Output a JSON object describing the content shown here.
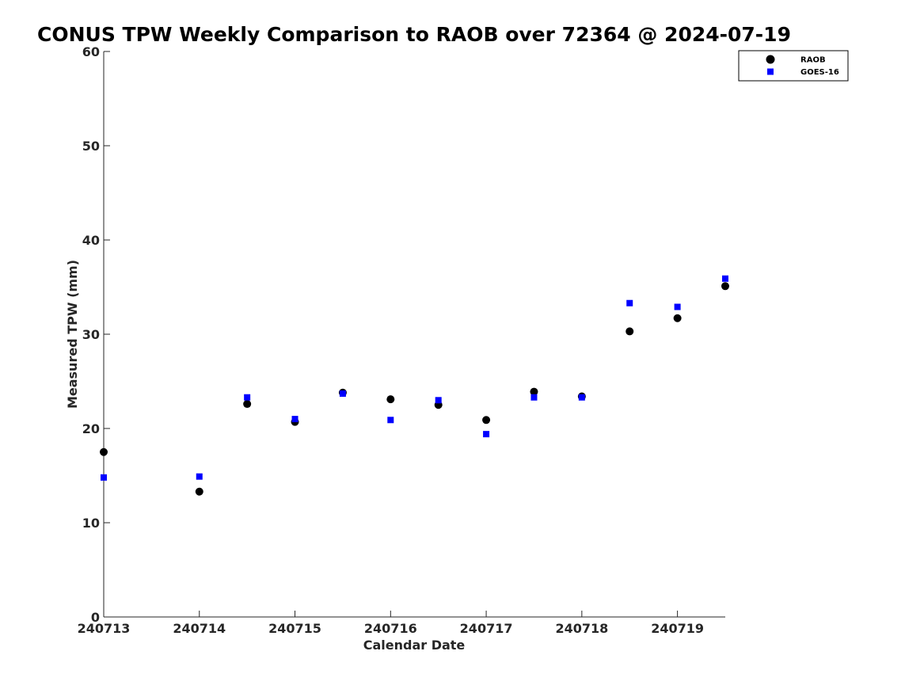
{
  "chart_data": {
    "type": "scatter",
    "title": "CONUS TPW Weekly Comparison to RAOB over 72364 @ 2024-07-19",
    "xlabel": "Calendar Date",
    "ylabel": "Measured TPW (mm)",
    "x_ticks": [
      {
        "value": 0,
        "label": "240713"
      },
      {
        "value": 1,
        "label": "240714"
      },
      {
        "value": 2,
        "label": "240715"
      },
      {
        "value": 3,
        "label": "240716"
      },
      {
        "value": 4,
        "label": "240717"
      },
      {
        "value": 5,
        "label": "240718"
      },
      {
        "value": 6,
        "label": "240719"
      }
    ],
    "y_ticks": [
      0,
      10,
      20,
      30,
      40,
      50,
      60
    ],
    "xlim": [
      0,
      6.5
    ],
    "ylim": [
      0,
      60
    ],
    "grid": false,
    "legend_position": "top-right",
    "series": [
      {
        "name": "RAOB",
        "marker": "circle",
        "color": "#000000",
        "points": [
          {
            "x": 0,
            "y": 17.5
          },
          {
            "x": 1,
            "y": 13.3
          },
          {
            "x": 1.5,
            "y": 22.6
          },
          {
            "x": 2,
            "y": 20.7
          },
          {
            "x": 2.5,
            "y": 23.8
          },
          {
            "x": 3,
            "y": 23.1
          },
          {
            "x": 3.5,
            "y": 22.5
          },
          {
            "x": 4,
            "y": 20.9
          },
          {
            "x": 4.5,
            "y": 23.9
          },
          {
            "x": 5,
            "y": 23.4
          },
          {
            "x": 5.5,
            "y": 30.3
          },
          {
            "x": 6,
            "y": 31.7
          },
          {
            "x": 6.5,
            "y": 35.1
          }
        ]
      },
      {
        "name": "GOES-16",
        "marker": "square",
        "color": "#0000ff",
        "points": [
          {
            "x": 0,
            "y": 14.8
          },
          {
            "x": 1,
            "y": 14.9
          },
          {
            "x": 1.5,
            "y": 23.3
          },
          {
            "x": 2,
            "y": 21.0
          },
          {
            "x": 2.5,
            "y": 23.7
          },
          {
            "x": 3,
            "y": 20.9
          },
          {
            "x": 3.5,
            "y": 23.0
          },
          {
            "x": 4,
            "y": 19.4
          },
          {
            "x": 4.5,
            "y": 23.3
          },
          {
            "x": 5,
            "y": 23.3
          },
          {
            "x": 5.5,
            "y": 33.3
          },
          {
            "x": 6,
            "y": 32.9
          },
          {
            "x": 6.5,
            "y": 35.9
          }
        ]
      }
    ]
  }
}
